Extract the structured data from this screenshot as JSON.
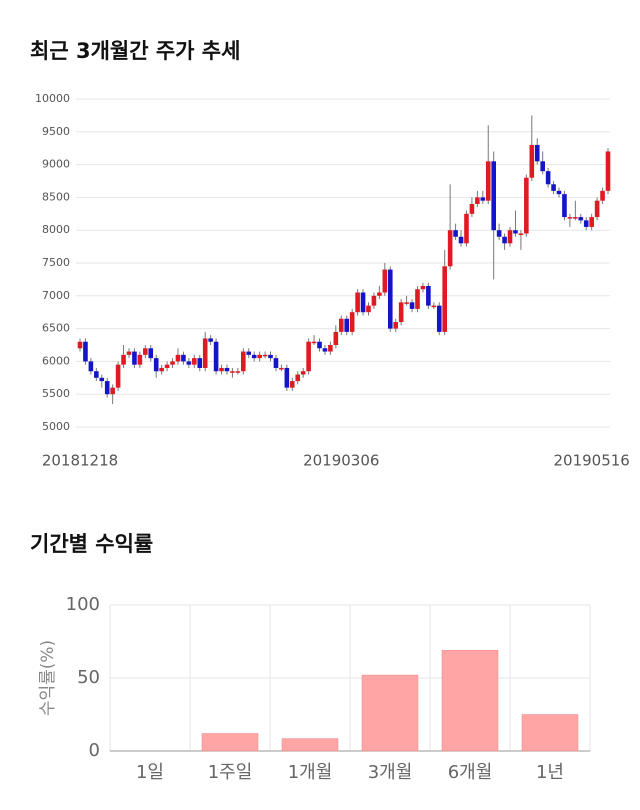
{
  "chart_data": [
    {
      "type": "candlestick",
      "title": "최근 3개월간 주가 추세",
      "categories": [
        "20181218",
        null,
        null,
        null,
        null,
        null,
        null,
        null,
        null,
        null,
        null,
        null,
        null,
        null,
        null,
        null,
        null,
        null,
        null,
        null,
        null,
        null,
        null,
        null,
        null,
        null,
        null,
        null,
        null,
        null,
        null,
        null,
        null,
        null,
        null,
        null,
        null,
        null,
        null,
        null,
        null,
        null,
        null,
        null,
        null,
        null,
        null,
        null,
        "20190306",
        null,
        null,
        null,
        null,
        null,
        null,
        null,
        null,
        null,
        null,
        null,
        null,
        null,
        null,
        null,
        null,
        null,
        null,
        null,
        null,
        null,
        null,
        null,
        null,
        null,
        null,
        null,
        null,
        null,
        null,
        null,
        null,
        null,
        null,
        null,
        null,
        null,
        null,
        null,
        null,
        null,
        null,
        null,
        null,
        null,
        "20190516",
        null,
        null,
        null
      ],
      "open": [
        6200,
        6300,
        6000,
        5850,
        5750,
        5700,
        5500,
        5600,
        5950,
        6100,
        6150,
        5950,
        6100,
        6200,
        6050,
        5850,
        5900,
        5950,
        6000,
        6100,
        6000,
        5950,
        6050,
        5900,
        6350,
        6300,
        5850,
        5900,
        5850,
        5850,
        5850,
        6150,
        6100,
        6050,
        6100,
        6100,
        6050,
        5900,
        5900,
        5600,
        5700,
        5800,
        5850,
        6300,
        6300,
        6200,
        6150,
        6250,
        6450,
        6650,
        6450,
        6750,
        7050,
        6750,
        6850,
        7000,
        7050,
        7400,
        6500,
        6600,
        6900,
        6900,
        6800,
        7100,
        7150,
        6850,
        6850,
        6450,
        7450,
        8000,
        7900,
        7800,
        8250,
        8400,
        8500,
        8450,
        9050,
        8000,
        7900,
        7800,
        8000,
        7950,
        7950,
        8800,
        9300,
        9050,
        8900,
        8700,
        8600,
        8550,
        8200,
        8200,
        8200,
        8150,
        8050,
        8200,
        8450,
        8600
      ],
      "high": [
        6350,
        6350,
        6050,
        5900,
        5800,
        5750,
        5650,
        6000,
        6250,
        6200,
        6200,
        6150,
        6250,
        6250,
        6100,
        5950,
        6000,
        6050,
        6200,
        6150,
        6050,
        6100,
        6100,
        6450,
        6400,
        6350,
        5950,
        5950,
        5900,
        5900,
        6200,
        6200,
        6150,
        6150,
        6150,
        6150,
        6100,
        5950,
        5950,
        5750,
        5850,
        5900,
        6350,
        6400,
        6350,
        6250,
        6300,
        6550,
        6700,
        6700,
        6800,
        7100,
        7100,
        6900,
        7050,
        7150,
        7500,
        7450,
        6650,
        6950,
        7000,
        6950,
        7150,
        7200,
        7200,
        6900,
        6900,
        7700,
        8700,
        8100,
        8000,
        8300,
        8500,
        8600,
        8600,
        9600,
        9200,
        8100,
        7950,
        8050,
        8300,
        8000,
        8850,
        9750,
        9400,
        9200,
        8950,
        8750,
        8650,
        8600,
        8250,
        8450,
        8250,
        8200,
        8250,
        8500,
        8650,
        9250
      ],
      "low": [
        6150,
        5950,
        5800,
        5700,
        5600,
        5450,
        5350,
        5550,
        5900,
        6050,
        5900,
        5900,
        6050,
        6000,
        5750,
        5800,
        5850,
        5900,
        5950,
        5950,
        5900,
        5900,
        5850,
        5850,
        6250,
        5800,
        5800,
        5800,
        5750,
        5800,
        5800,
        6050,
        6000,
        6000,
        6050,
        6000,
        5850,
        5850,
        5550,
        5550,
        5650,
        5750,
        5800,
        6250,
        6150,
        6100,
        6100,
        6200,
        6400,
        6400,
        6400,
        6700,
        6700,
        6700,
        6800,
        6950,
        7000,
        6450,
        6450,
        6550,
        6850,
        6750,
        6750,
        7050,
        6800,
        6800,
        6400,
        6400,
        7400,
        7850,
        7750,
        7750,
        8200,
        8350,
        8400,
        8400,
        7250,
        7850,
        7700,
        7750,
        7900,
        7700,
        7900,
        8750,
        9000,
        8850,
        8650,
        8550,
        8500,
        8150,
        8050,
        8150,
        8100,
        8000,
        8000,
        8150,
        8400,
        8550
      ],
      "close": [
        6300,
        6000,
        5850,
        5750,
        5700,
        5500,
        5600,
        5950,
        6100,
        6150,
        5950,
        6100,
        6200,
        6050,
        5850,
        5900,
        5950,
        6000,
        6100,
        6000,
        5950,
        6050,
        5900,
        6350,
        6300,
        5850,
        5900,
        5850,
        5850,
        5850,
        6150,
        6100,
        6050,
        6100,
        6100,
        6050,
        5900,
        5900,
        5600,
        5700,
        5800,
        5850,
        6300,
        6300,
        6200,
        6150,
        6250,
        6450,
        6650,
        6450,
        6750,
        7050,
        6750,
        6850,
        7000,
        7050,
        7400,
        6500,
        6600,
        6900,
        6900,
        6800,
        7100,
        7150,
        6850,
        6850,
        6450,
        7450,
        8000,
        7900,
        7800,
        8250,
        8400,
        8500,
        8450,
        9050,
        8000,
        7900,
        7800,
        8000,
        7950,
        7950,
        8800,
        9300,
        9050,
        8900,
        8700,
        8600,
        8550,
        8200,
        8200,
        8200,
        8150,
        8050,
        8200,
        8450,
        8600,
        9200
      ],
      "up_color": "#e01a22",
      "down_color": "#1414c8",
      "ylim": [
        5000,
        10000
      ],
      "yticks": [
        5000,
        5500,
        6000,
        6500,
        7000,
        7500,
        8000,
        8500,
        9000,
        9500,
        10000
      ],
      "grid": true
    },
    {
      "type": "bar",
      "title": "기간별 수익률",
      "y_label": "수익률(%)",
      "categories": [
        "1일",
        "1주일",
        "1개월",
        "3개월",
        "6개월",
        "1년"
      ],
      "values": [
        0,
        12,
        8.5,
        52,
        69,
        25
      ],
      "color": "#ffa5a5",
      "ylim": [
        0,
        100
      ],
      "yticks": [
        0,
        50,
        100
      ],
      "grid": true
    }
  ]
}
